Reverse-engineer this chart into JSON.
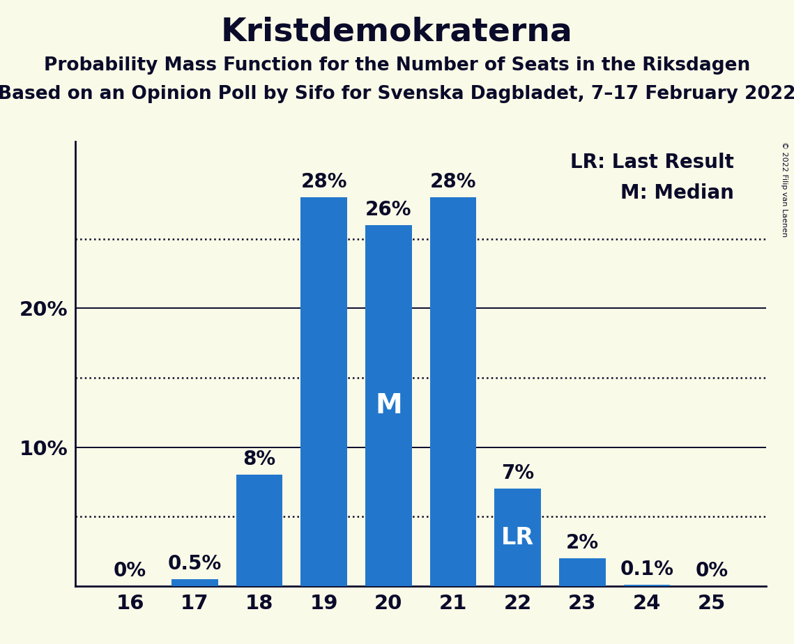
{
  "title": "Kristdemokraterna",
  "subtitle1": "Probability Mass Function for the Number of Seats in the Riksdagen",
  "subtitle2": "Based on an Opinion Poll by Sifo for Svenska Dagbladet, 7–17 February 2022",
  "copyright": "© 2022 Filip van Laenen",
  "categories": [
    16,
    17,
    18,
    19,
    20,
    21,
    22,
    23,
    24,
    25
  ],
  "values": [
    0.0,
    0.5,
    8.0,
    28.0,
    26.0,
    28.0,
    7.0,
    2.0,
    0.1,
    0.0
  ],
  "bar_color": "#2277cc",
  "background_color": "#fafae8",
  "text_color": "#0a0a2a",
  "bar_labels": [
    "0%",
    "0.5%",
    "8%",
    "28%",
    "26%",
    "28%",
    "7%",
    "2%",
    "0.1%",
    "0%"
  ],
  "median_bar_seat": 20,
  "lr_bar_seat": 22,
  "legend_lr": "LR: Last Result",
  "legend_m": "M: Median",
  "dotted_lines": [
    5,
    15,
    25
  ],
  "solid_lines": [
    10,
    20
  ],
  "ylim": [
    0,
    32
  ],
  "ytick_positions": [
    10,
    20
  ],
  "ytick_labels": [
    "10%",
    "20%"
  ],
  "title_fontsize": 34,
  "subtitle_fontsize": 19,
  "bar_label_fontsize": 20,
  "axis_tick_fontsize": 21,
  "legend_fontsize": 20,
  "median_label_fontsize": 28,
  "lr_label_fontsize": 24
}
